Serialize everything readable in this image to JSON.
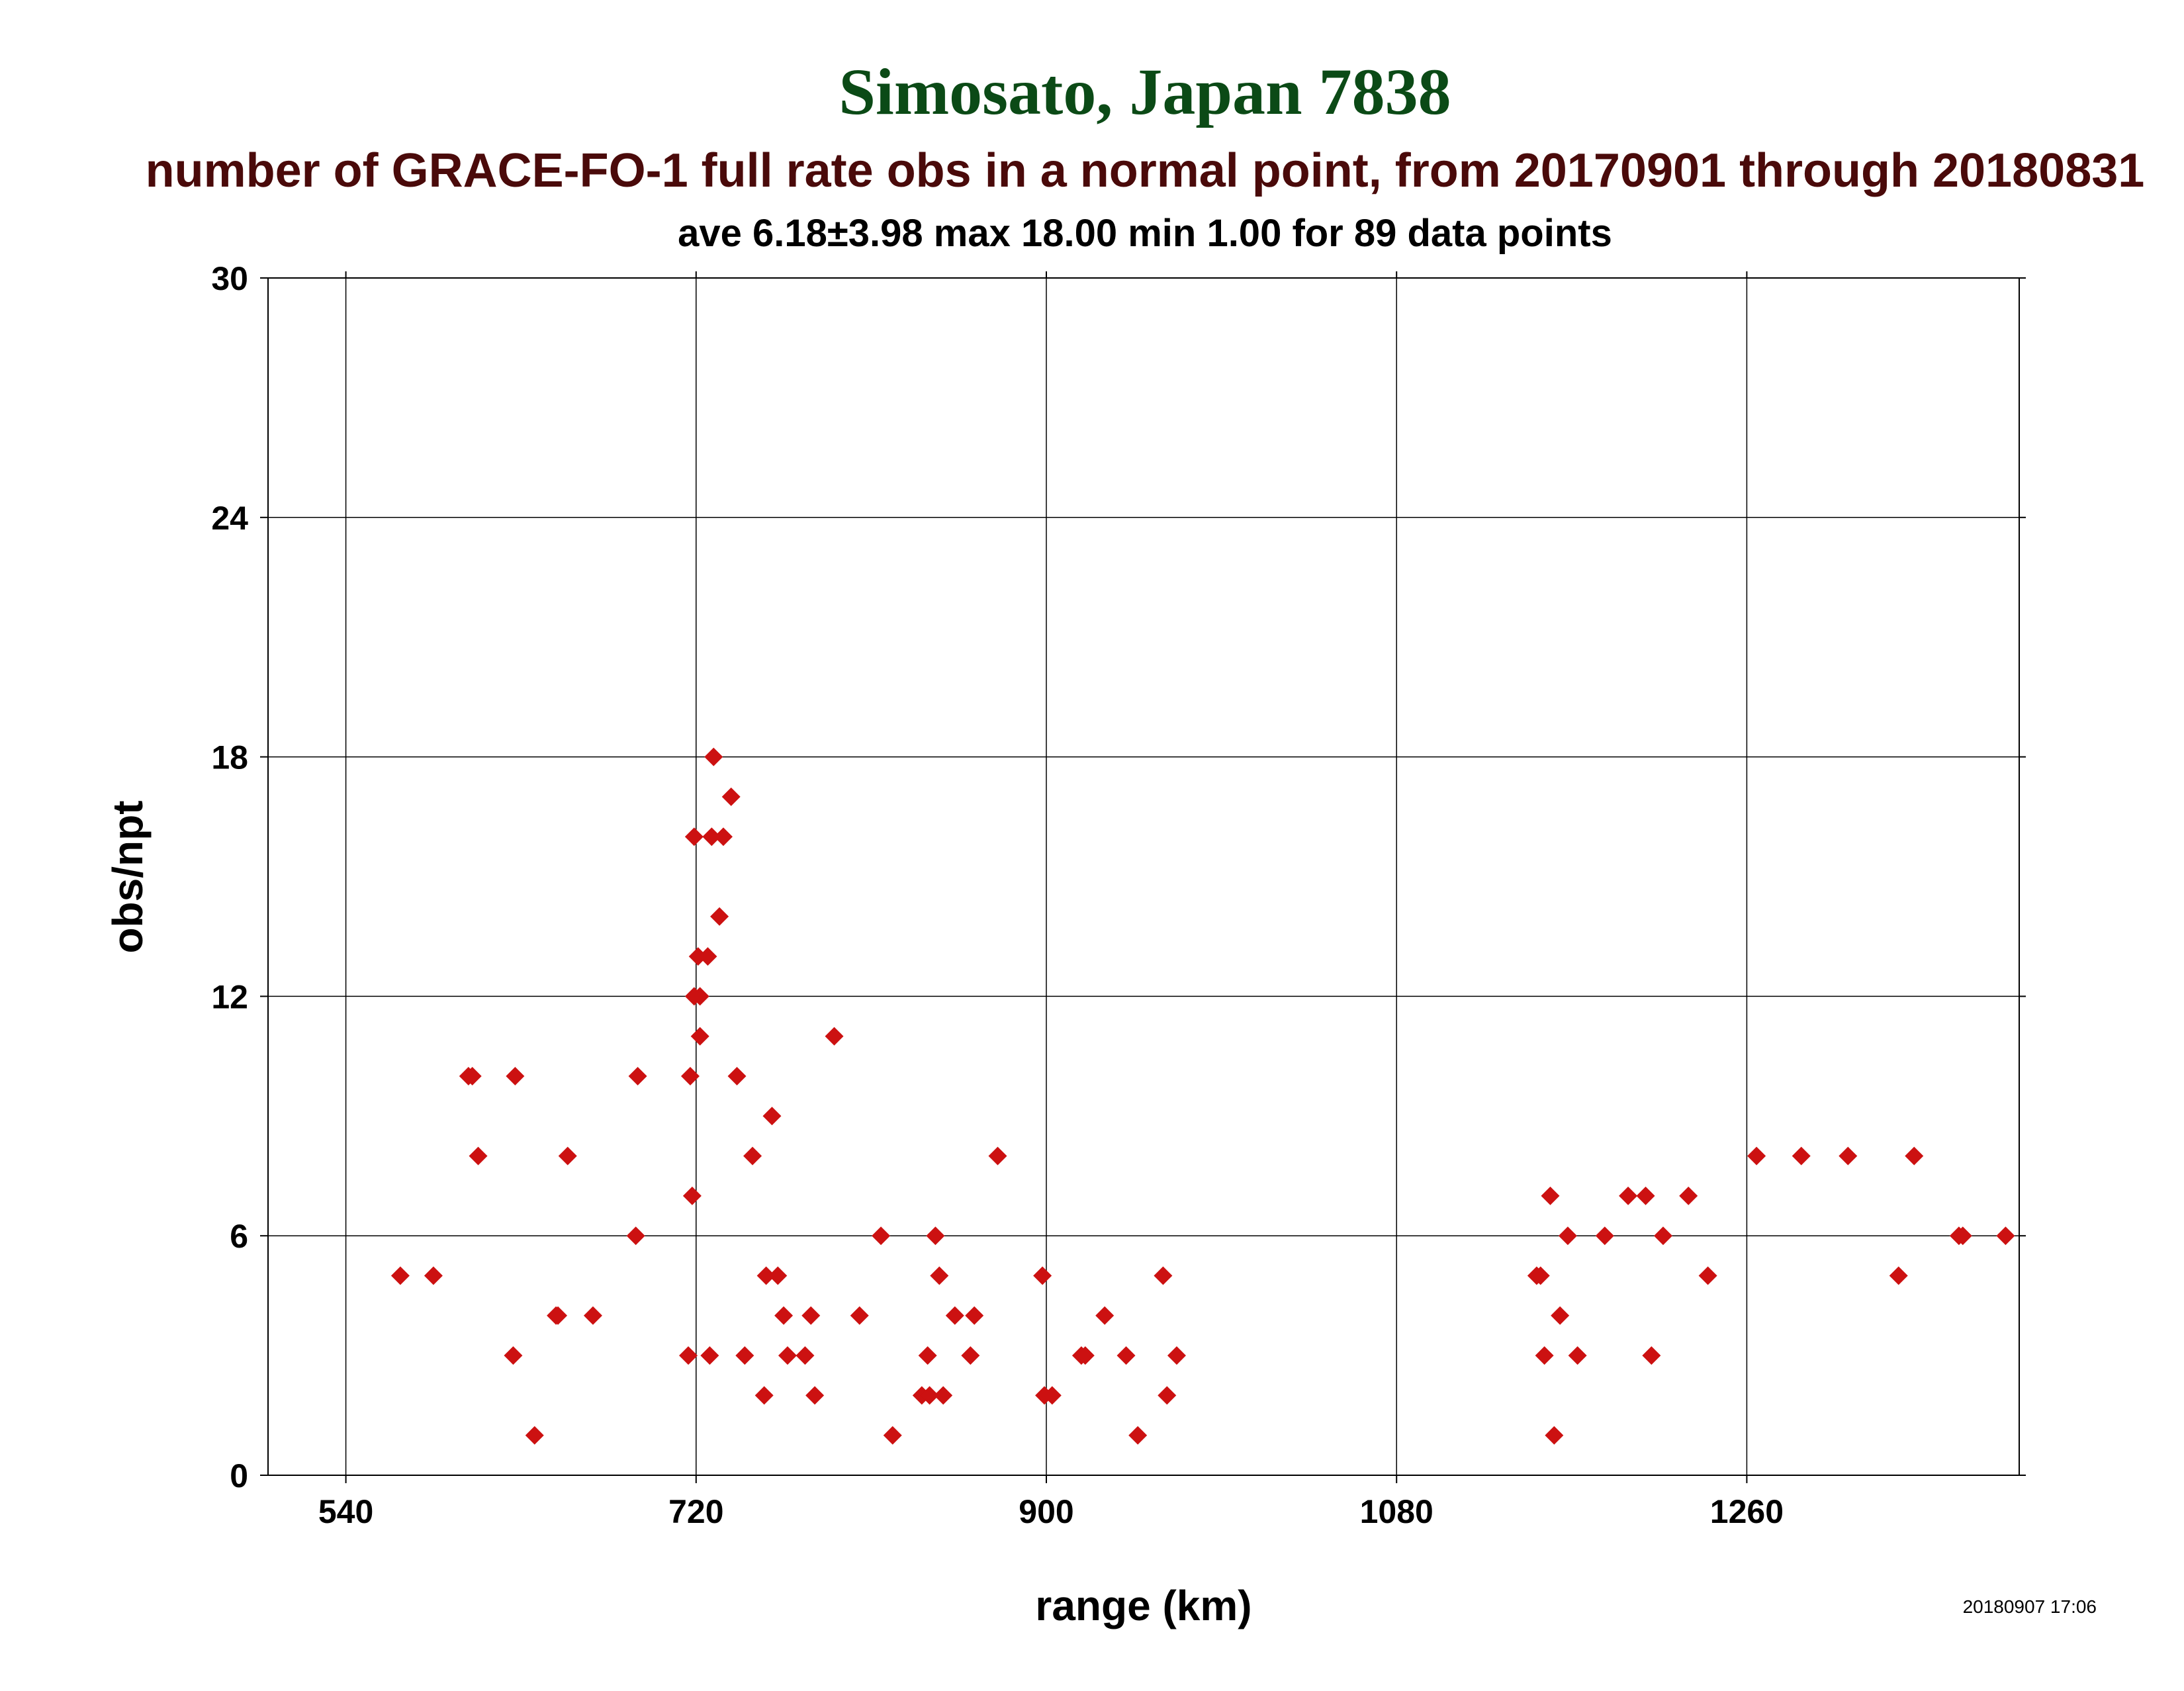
{
  "chart_data": {
    "type": "scatter",
    "title": "Simosato, Japan 7838",
    "subtitle": "number of GRACE-FO-1 full rate obs in a normal point, from 20170901 through 20180831",
    "stats": "ave 6.18±3.98 max 18.00 min 1.00 for 89 data points",
    "xlabel": "range (km)",
    "ylabel": "obs/npt",
    "timestamp": "20180907 17:06",
    "xlim": [
      500,
      1400
    ],
    "ylim": [
      0,
      30
    ],
    "xticks": [
      540,
      720,
      900,
      1080,
      1260
    ],
    "yticks": [
      0,
      6,
      12,
      18,
      24,
      30
    ],
    "xtick_labels": [
      "540",
      "720",
      "900",
      "1080",
      "1260"
    ],
    "ytick_labels": [
      "0",
      "6",
      "12",
      "18",
      "24",
      "30"
    ],
    "grid": true,
    "colors": {
      "title": "#0b4a16",
      "subtitle": "#4a0a0a",
      "marker": "#cc1111",
      "text": "#000000",
      "grid": "#000000"
    },
    "marker_shape": "diamond",
    "series": [
      {
        "x": [
          568,
          585,
          603,
          605,
          608,
          626,
          627,
          637,
          648,
          649,
          654,
          667,
          689,
          690,
          716,
          717,
          718,
          719,
          719,
          721,
          722,
          722,
          726,
          727,
          728,
          729,
          732,
          734,
          738,
          741,
          745,
          749,
          755,
          756,
          759,
          762,
          765,
          767,
          776,
          779,
          781,
          791,
          804,
          815,
          821,
          836,
          839,
          840,
          843,
          845,
          847,
          853,
          861,
          863,
          875,
          898,
          899,
          903,
          918,
          920,
          930,
          941,
          947,
          960,
          962,
          967,
          1152,
          1154,
          1156,
          1159,
          1161,
          1164,
          1168,
          1173,
          1187,
          1199,
          1208,
          1211,
          1217,
          1230,
          1240,
          1265,
          1288,
          1312,
          1338,
          1346,
          1369,
          1371,
          1393
        ],
        "y": [
          5,
          5,
          10,
          10,
          8,
          3,
          10,
          1,
          4,
          4,
          8,
          4,
          6,
          10,
          3,
          10,
          7,
          12,
          16,
          13,
          11,
          12,
          13,
          3,
          16,
          18,
          14,
          16,
          17,
          10,
          3,
          8,
          2,
          5,
          9,
          5,
          4,
          3,
          3,
          4,
          2,
          11,
          4,
          6,
          1,
          2,
          3,
          2,
          6,
          5,
          2,
          4,
          3,
          4,
          8,
          5,
          2,
          2,
          3,
          3,
          4,
          3,
          1,
          5,
          2,
          3,
          5,
          5,
          3,
          7,
          1,
          4,
          6,
          3,
          6,
          7,
          7,
          3,
          6,
          7,
          5,
          8,
          8,
          8,
          5,
          8,
          6,
          6,
          6
        ]
      }
    ]
  }
}
